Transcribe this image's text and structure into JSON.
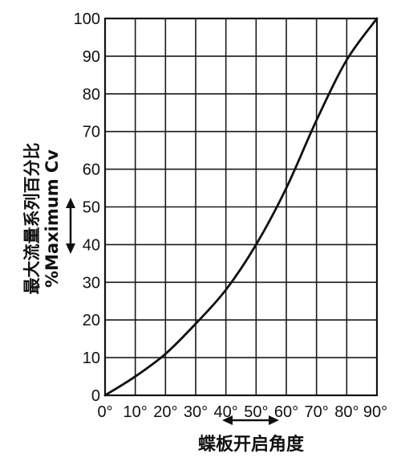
{
  "chart_data": {
    "type": "line",
    "ylabel_cn": "最大流量系列百分比",
    "ylabel_en": "%Maximum Cv",
    "xlabel": "蝶板开启角度",
    "x": [
      0,
      10,
      20,
      30,
      40,
      50,
      60,
      70,
      80,
      90
    ],
    "y": [
      0,
      5,
      11,
      19,
      28,
      40,
      55,
      73,
      89,
      100
    ],
    "x_tick_labels": [
      "0°",
      "10°",
      "20°",
      "30°",
      "40°",
      "50°",
      "60°",
      "70°",
      "80°",
      "90°"
    ],
    "y_tick_labels": [
      "0",
      "10",
      "20",
      "30",
      "40",
      "50",
      "60",
      "70",
      "80",
      "90",
      "100"
    ],
    "xlim": [
      0,
      90
    ],
    "ylim": [
      0,
      100
    ],
    "grid": true,
    "colors": {
      "line": "#111111",
      "grid": "#1a1a1a",
      "background": "#ffffff"
    }
  }
}
